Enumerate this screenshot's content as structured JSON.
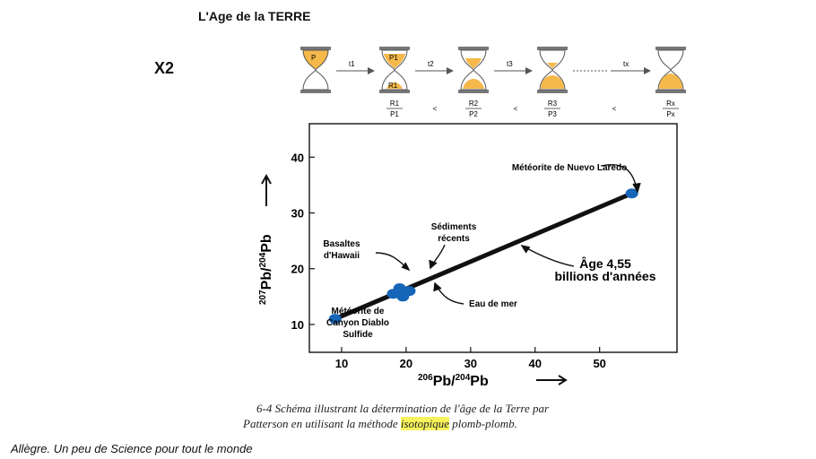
{
  "page": {
    "title": "L'Age de la TERRE",
    "marker": "X2",
    "footer": "Allègre. Un peu de Science pour tout le monde"
  },
  "hourglass_diagram": {
    "glasses": [
      {
        "top_label": "P",
        "bottom_label": ""
      },
      {
        "top_label": "P1",
        "bottom_label": "R1"
      },
      {
        "top_label": "",
        "bottom_label": ""
      },
      {
        "top_label": "",
        "bottom_label": ""
      },
      {
        "top_label": "",
        "bottom_label": ""
      }
    ],
    "arrows": [
      "t1",
      "t2",
      "t3",
      "tx"
    ],
    "ratios": [
      {
        "num": "R1",
        "den": "P1"
      },
      {
        "num": "R2",
        "den": "P2"
      },
      {
        "num": "R3",
        "den": "P3"
      },
      {
        "num": "Rx",
        "den": "Px"
      }
    ],
    "comparator": "<",
    "sand_color": "#f5b84a"
  },
  "chart_data": {
    "type": "line",
    "xlabel": "206Pb/204Pb",
    "ylabel": "207Pb/204Pb",
    "x_ticks": [
      "10",
      "20",
      "30",
      "40",
      "50"
    ],
    "y_ticks": [
      "10",
      "20",
      "30",
      "40"
    ],
    "xlim": [
      5,
      62
    ],
    "ylim": [
      5,
      46
    ],
    "line": {
      "x": [
        9,
        55
      ],
      "y": [
        11,
        33.5
      ],
      "label": "Âge 4,55\nbillions d'années"
    },
    "points": [
      {
        "x": 9,
        "y": 11,
        "label": "Météorite de\nCanyon Diablo\nSulfide"
      },
      {
        "x": 18,
        "y": 15.5,
        "label": "Basaltes\nd'Hawaii"
      },
      {
        "x": 19.5,
        "y": 15,
        "label": "Eau de mer"
      },
      {
        "x": 19,
        "y": 16.5,
        "label": ""
      },
      {
        "x": 20.5,
        "y": 16,
        "label": "Sédiments\nrécents"
      },
      {
        "x": 55,
        "y": 33.5,
        "label": "Météorite de Nuevo Laredo"
      }
    ],
    "point_color": "#1565b8"
  },
  "caption": {
    "line1": "6-4 Schéma illustrant la détermination de l'âge de la Terre par",
    "line2_before": "Patterson en utilisant la méthode ",
    "line2_highlight": "isotopique",
    "line2_after": " plomb-plomb."
  }
}
